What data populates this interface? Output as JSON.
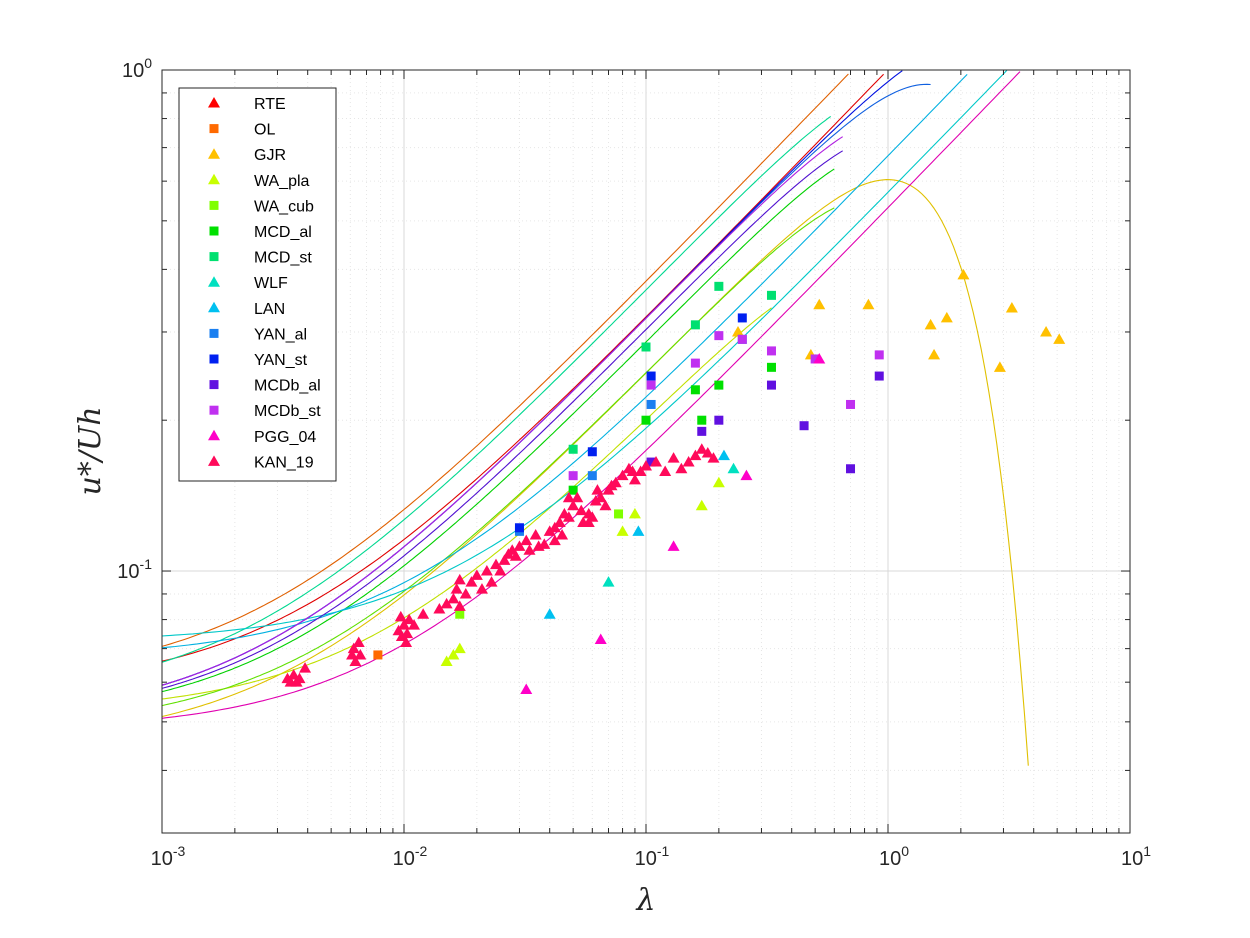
{
  "chart_data": {
    "type": "scatter",
    "title": "",
    "xlabel": "λ",
    "ylabel": "u*/Uh",
    "xscale": "log",
    "yscale": "log",
    "xlim": [
      0.001,
      10
    ],
    "ylim": [
      0.03,
      1
    ],
    "grid": true,
    "legend_position": "top-left",
    "x_ticks": [
      {
        "value": 0.001,
        "base": "10",
        "exp": "-3"
      },
      {
        "value": 0.01,
        "base": "10",
        "exp": "-2"
      },
      {
        "value": 0.1,
        "base": "10",
        "exp": "-1"
      },
      {
        "value": 1,
        "base": "10",
        "exp": "0"
      },
      {
        "value": 10,
        "base": "10",
        "exp": "1"
      }
    ],
    "y_ticks": [
      {
        "value": 0.1,
        "base": "10",
        "exp": "-1"
      },
      {
        "value": 1,
        "base": "10",
        "exp": "0"
      }
    ],
    "series": [
      {
        "name": "RTE",
        "marker": "triangle",
        "color": "#ff0000",
        "points": []
      },
      {
        "name": "OL",
        "marker": "square",
        "color": "#ff6a00",
        "points": [
          [
            0.0078,
            0.068
          ]
        ]
      },
      {
        "name": "GJR",
        "marker": "triangle",
        "color": "#ffc000",
        "points": [
          [
            0.48,
            0.27
          ],
          [
            0.52,
            0.34
          ],
          [
            0.83,
            0.34
          ],
          [
            1.5,
            0.31
          ],
          [
            1.55,
            0.27
          ],
          [
            1.75,
            0.32
          ],
          [
            2.05,
            0.39
          ],
          [
            2.9,
            0.255
          ],
          [
            3.25,
            0.335
          ],
          [
            4.5,
            0.3
          ],
          [
            5.1,
            0.29
          ],
          [
            0.24,
            0.3
          ]
        ]
      },
      {
        "name": "WA_pla",
        "marker": "triangle",
        "color": "#c8ff00",
        "points": [
          [
            0.015,
            0.066
          ],
          [
            0.017,
            0.07
          ],
          [
            0.016,
            0.068
          ],
          [
            0.08,
            0.12
          ],
          [
            0.09,
            0.13
          ],
          [
            0.17,
            0.135
          ],
          [
            0.2,
            0.15
          ]
        ]
      },
      {
        "name": "WA_cub",
        "marker": "square",
        "color": "#80ff00",
        "points": [
          [
            0.017,
            0.082
          ],
          [
            0.077,
            0.13
          ]
        ]
      },
      {
        "name": "MCD_al",
        "marker": "square",
        "color": "#00e000",
        "points": [
          [
            0.05,
            0.145
          ],
          [
            0.1,
            0.2
          ],
          [
            0.16,
            0.23
          ],
          [
            0.2,
            0.235
          ],
          [
            0.33,
            0.255
          ],
          [
            0.17,
            0.2
          ]
        ]
      },
      {
        "name": "MCD_st",
        "marker": "square",
        "color": "#00e070",
        "points": [
          [
            0.05,
            0.175
          ],
          [
            0.1,
            0.28
          ],
          [
            0.16,
            0.31
          ],
          [
            0.2,
            0.37
          ],
          [
            0.33,
            0.355
          ]
        ]
      },
      {
        "name": "WLF",
        "marker": "triangle",
        "color": "#00e0c0",
        "points": [
          [
            0.07,
            0.095
          ],
          [
            0.23,
            0.16
          ]
        ]
      },
      {
        "name": "LAN",
        "marker": "triangle",
        "color": "#00c0f0",
        "points": [
          [
            0.04,
            0.082
          ],
          [
            0.093,
            0.12
          ],
          [
            0.21,
            0.17
          ]
        ]
      },
      {
        "name": "YAN_al",
        "marker": "square",
        "color": "#1a7ff0",
        "points": [
          [
            0.06,
            0.155
          ],
          [
            0.105,
            0.215
          ],
          [
            0.25,
            0.29
          ],
          [
            0.03,
            0.12
          ]
        ]
      },
      {
        "name": "YAN_st",
        "marker": "square",
        "color": "#0020f0",
        "points": [
          [
            0.03,
            0.122
          ],
          [
            0.06,
            0.173
          ],
          [
            0.105,
            0.245
          ],
          [
            0.25,
            0.32
          ]
        ]
      },
      {
        "name": "MCDb_al",
        "marker": "square",
        "color": "#6010e0",
        "points": [
          [
            0.105,
            0.165
          ],
          [
            0.17,
            0.19
          ],
          [
            0.2,
            0.2
          ],
          [
            0.33,
            0.235
          ],
          [
            0.45,
            0.195
          ],
          [
            0.7,
            0.16
          ],
          [
            0.92,
            0.245
          ]
        ]
      },
      {
        "name": "MCDb_st",
        "marker": "square",
        "color": "#c030f0",
        "points": [
          [
            0.05,
            0.155
          ],
          [
            0.105,
            0.235
          ],
          [
            0.16,
            0.26
          ],
          [
            0.2,
            0.295
          ],
          [
            0.33,
            0.275
          ],
          [
            0.5,
            0.265
          ],
          [
            0.7,
            0.215
          ],
          [
            0.92,
            0.27
          ],
          [
            0.25,
            0.29
          ]
        ]
      },
      {
        "name": "PGG_04",
        "marker": "triangle",
        "color": "#ff00c8",
        "points": [
          [
            0.032,
            0.058
          ],
          [
            0.065,
            0.073
          ],
          [
            0.13,
            0.112
          ],
          [
            0.26,
            0.155
          ],
          [
            0.52,
            0.265
          ]
        ]
      },
      {
        "name": "KAN_19",
        "marker": "triangle",
        "color": "#ff0a5a",
        "points": [
          [
            0.0033,
            0.061
          ],
          [
            0.0035,
            0.062
          ],
          [
            0.0036,
            0.06
          ],
          [
            0.0037,
            0.061
          ],
          [
            0.0039,
            0.064
          ],
          [
            0.0034,
            0.06
          ],
          [
            0.0062,
            0.07
          ],
          [
            0.0063,
            0.066
          ],
          [
            0.0065,
            0.072
          ],
          [
            0.0061,
            0.068
          ],
          [
            0.0066,
            0.068
          ],
          [
            0.0095,
            0.076
          ],
          [
            0.0098,
            0.074
          ],
          [
            0.01,
            0.078
          ],
          [
            0.0102,
            0.072
          ],
          [
            0.0105,
            0.08
          ],
          [
            0.011,
            0.078
          ],
          [
            0.0097,
            0.081
          ],
          [
            0.0103,
            0.075
          ],
          [
            0.012,
            0.082
          ],
          [
            0.014,
            0.084
          ],
          [
            0.015,
            0.086
          ],
          [
            0.016,
            0.088
          ],
          [
            0.017,
            0.085
          ],
          [
            0.0165,
            0.092
          ],
          [
            0.017,
            0.096
          ],
          [
            0.018,
            0.09
          ],
          [
            0.019,
            0.095
          ],
          [
            0.02,
            0.098
          ],
          [
            0.021,
            0.092
          ],
          [
            0.022,
            0.1
          ],
          [
            0.023,
            0.095
          ],
          [
            0.024,
            0.103
          ],
          [
            0.025,
            0.1
          ],
          [
            0.026,
            0.105
          ],
          [
            0.027,
            0.108
          ],
          [
            0.028,
            0.11
          ],
          [
            0.029,
            0.107
          ],
          [
            0.03,
            0.112
          ],
          [
            0.032,
            0.115
          ],
          [
            0.033,
            0.11
          ],
          [
            0.035,
            0.118
          ],
          [
            0.036,
            0.112
          ],
          [
            0.038,
            0.113
          ],
          [
            0.04,
            0.12
          ],
          [
            0.042,
            0.115
          ],
          [
            0.044,
            0.125
          ],
          [
            0.045,
            0.118
          ],
          [
            0.046,
            0.13
          ],
          [
            0.048,
            0.128
          ],
          [
            0.05,
            0.135
          ],
          [
            0.052,
            0.14
          ],
          [
            0.054,
            0.132
          ],
          [
            0.055,
            0.125
          ],
          [
            0.058,
            0.13
          ],
          [
            0.06,
            0.128
          ],
          [
            0.062,
            0.138
          ],
          [
            0.065,
            0.14
          ],
          [
            0.068,
            0.135
          ],
          [
            0.07,
            0.145
          ],
          [
            0.075,
            0.15
          ],
          [
            0.08,
            0.155
          ],
          [
            0.085,
            0.16
          ],
          [
            0.09,
            0.152
          ],
          [
            0.095,
            0.158
          ],
          [
            0.1,
            0.162
          ],
          [
            0.11,
            0.165
          ],
          [
            0.12,
            0.158
          ],
          [
            0.13,
            0.168
          ],
          [
            0.14,
            0.16
          ],
          [
            0.15,
            0.165
          ],
          [
            0.16,
            0.17
          ],
          [
            0.17,
            0.175
          ],
          [
            0.18,
            0.172
          ],
          [
            0.19,
            0.168
          ],
          [
            0.042,
            0.122
          ],
          [
            0.048,
            0.14
          ],
          [
            0.063,
            0.145
          ],
          [
            0.072,
            0.148
          ],
          [
            0.088,
            0.158
          ],
          [
            0.058,
            0.125
          ]
        ]
      }
    ],
    "model_curves": [
      {
        "color": "#e00000",
        "fn": "sat",
        "a": 0.058,
        "b": 1.0,
        "c": 3.0
      },
      {
        "color": "#e06000",
        "fn": "sat",
        "a": 0.06,
        "b": 1.4,
        "c": 3.0
      },
      {
        "color": "#e0c000",
        "fn": "peak",
        "a": 0.045,
        "b": 0.6,
        "c": 2.5,
        "xmax": 3.8
      },
      {
        "color": "#c0e000",
        "fn": "peak",
        "a": 0.052,
        "b": 0.38,
        "c": 6.0,
        "xmax": 0.33
      },
      {
        "color": "#60e000",
        "fn": "peak",
        "a": 0.048,
        "b": 0.6,
        "c": 3.5,
        "xmax": 0.6
      },
      {
        "color": "#00d000",
        "fn": "peak",
        "a": 0.05,
        "b": 0.8,
        "c": 2.5,
        "xmax": 0.6
      },
      {
        "color": "#00d890",
        "fn": "peak",
        "a": 0.055,
        "b": 1.3,
        "c": 2.2,
        "xmax": 0.58
      },
      {
        "color": "#00c8c8",
        "fn": "sat",
        "a": 0.072,
        "b": 0.32,
        "c": 6.0
      },
      {
        "color": "#00b0e0",
        "fn": "sat",
        "a": 0.067,
        "b": 0.45,
        "c": 3.0
      },
      {
        "color": "#1060e0",
        "fn": "peak",
        "a": 0.05,
        "b": 1.0,
        "c": 1.2,
        "xmax": 1.5
      },
      {
        "color": "#0010e0",
        "fn": "peak",
        "a": 0.05,
        "b": 1.0,
        "c": 0.55,
        "xmax": 3.8
      },
      {
        "color": "#5010d0",
        "fn": "peak",
        "a": 0.05,
        "b": 0.9,
        "c": 2.5,
        "xmax": 0.65
      },
      {
        "color": "#b020e0",
        "fn": "peak",
        "a": 0.05,
        "b": 1.0,
        "c": 2.2,
        "xmax": 0.65
      },
      {
        "color": "#e000b0",
        "fn": "sat",
        "a": 0.048,
        "b": 0.28,
        "c": 3.0
      }
    ]
  }
}
